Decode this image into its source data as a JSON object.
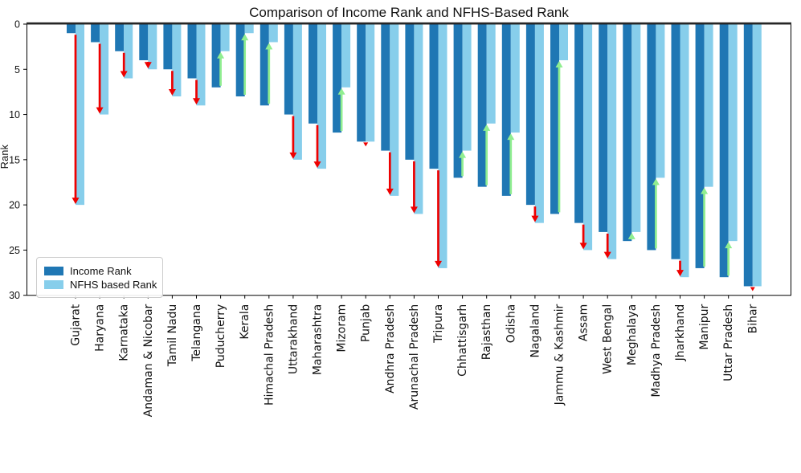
{
  "figure": {
    "title": "Comparison of Income Rank and NFHS-Based Rank",
    "ylabel": "Rank"
  },
  "chart_data": {
    "type": "bar",
    "title": "Comparison of Income Rank and NFHS-Based Rank",
    "xlabel": "",
    "ylabel": "Rank",
    "y_inverted": true,
    "ylim": [
      0,
      30
    ],
    "yticks": [
      0,
      5,
      10,
      15,
      20,
      25,
      30
    ],
    "x_tick_rotation": 90,
    "grid": false,
    "legend_position": "lower left",
    "categories": [
      "Gujarat",
      "Haryana",
      "Karnataka",
      "Andaman & Nicobar",
      "Tamil Nadu",
      "Telangana",
      "Puducherry",
      "Kerala",
      "Himachal Pradesh",
      "Uttarakhand",
      "Maharashtra",
      "Mizoram",
      "Punjab",
      "Andhra Pradesh",
      "Arunachal Pradesh",
      "Tripura",
      "Chhattisgarh",
      "Rajasthan",
      "Odisha",
      "Nagaland",
      "Jammu & Kashmir",
      "Assam",
      "West Bengal",
      "Meghalaya",
      "Madhya Pradesh",
      "Jharkhand",
      "Manipur",
      "Uttar Pradesh",
      "Bihar"
    ],
    "series": [
      {
        "name": "Income Rank",
        "color": "#1f77b4",
        "values": [
          1,
          2,
          3,
          4,
          5,
          6,
          7,
          8,
          9,
          10,
          11,
          12,
          13,
          14,
          15,
          16,
          17,
          18,
          19,
          20,
          21,
          22,
          23,
          24,
          25,
          26,
          27,
          28,
          29
        ]
      },
      {
        "name": "NFHS based Rank",
        "color": "#87ceeb",
        "values": [
          20,
          10,
          6,
          5,
          8,
          9,
          3,
          1,
          2,
          15,
          16,
          7,
          13,
          19,
          21,
          27,
          14,
          11,
          12,
          22,
          4,
          25,
          26,
          23,
          17,
          28,
          18,
          24,
          29
        ]
      }
    ],
    "annotations": {
      "decline_arrow_color": "#ee0000",
      "improve_arrow_color": "#90ee90",
      "rule": "red arrow points down when NFHS rank is worse (larger) than income rank; green arrow points up when NFHS rank is better (smaller)"
    },
    "axis_color": "#000000",
    "zero_line_color": "#262626"
  }
}
